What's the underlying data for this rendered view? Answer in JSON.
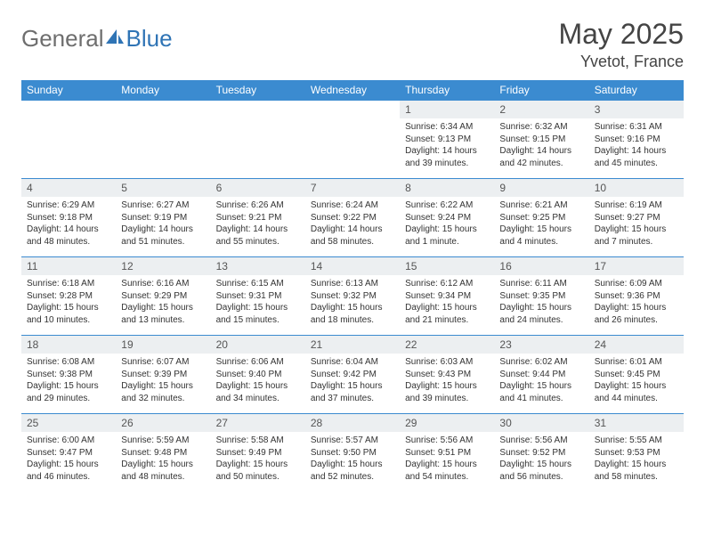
{
  "brand": {
    "part1": "General",
    "part2": "Blue"
  },
  "title": "May 2025",
  "location": "Yvetot, France",
  "colors": {
    "header_bg": "#3b8bd0",
    "header_fg": "#ffffff",
    "daynum_bg": "#eceff1",
    "border": "#3b8bd0",
    "title_color": "#444444",
    "logo_gray": "#6e6e6e",
    "logo_blue": "#2f74b5"
  },
  "weekdays": [
    "Sunday",
    "Monday",
    "Tuesday",
    "Wednesday",
    "Thursday",
    "Friday",
    "Saturday"
  ],
  "weeks": [
    [
      null,
      null,
      null,
      null,
      {
        "n": "1",
        "sr": "6:34 AM",
        "ss": "9:13 PM",
        "dl": "14 hours and 39 minutes."
      },
      {
        "n": "2",
        "sr": "6:32 AM",
        "ss": "9:15 PM",
        "dl": "14 hours and 42 minutes."
      },
      {
        "n": "3",
        "sr": "6:31 AM",
        "ss": "9:16 PM",
        "dl": "14 hours and 45 minutes."
      }
    ],
    [
      {
        "n": "4",
        "sr": "6:29 AM",
        "ss": "9:18 PM",
        "dl": "14 hours and 48 minutes."
      },
      {
        "n": "5",
        "sr": "6:27 AM",
        "ss": "9:19 PM",
        "dl": "14 hours and 51 minutes."
      },
      {
        "n": "6",
        "sr": "6:26 AM",
        "ss": "9:21 PM",
        "dl": "14 hours and 55 minutes."
      },
      {
        "n": "7",
        "sr": "6:24 AM",
        "ss": "9:22 PM",
        "dl": "14 hours and 58 minutes."
      },
      {
        "n": "8",
        "sr": "6:22 AM",
        "ss": "9:24 PM",
        "dl": "15 hours and 1 minute."
      },
      {
        "n": "9",
        "sr": "6:21 AM",
        "ss": "9:25 PM",
        "dl": "15 hours and 4 minutes."
      },
      {
        "n": "10",
        "sr": "6:19 AM",
        "ss": "9:27 PM",
        "dl": "15 hours and 7 minutes."
      }
    ],
    [
      {
        "n": "11",
        "sr": "6:18 AM",
        "ss": "9:28 PM",
        "dl": "15 hours and 10 minutes."
      },
      {
        "n": "12",
        "sr": "6:16 AM",
        "ss": "9:29 PM",
        "dl": "15 hours and 13 minutes."
      },
      {
        "n": "13",
        "sr": "6:15 AM",
        "ss": "9:31 PM",
        "dl": "15 hours and 15 minutes."
      },
      {
        "n": "14",
        "sr": "6:13 AM",
        "ss": "9:32 PM",
        "dl": "15 hours and 18 minutes."
      },
      {
        "n": "15",
        "sr": "6:12 AM",
        "ss": "9:34 PM",
        "dl": "15 hours and 21 minutes."
      },
      {
        "n": "16",
        "sr": "6:11 AM",
        "ss": "9:35 PM",
        "dl": "15 hours and 24 minutes."
      },
      {
        "n": "17",
        "sr": "6:09 AM",
        "ss": "9:36 PM",
        "dl": "15 hours and 26 minutes."
      }
    ],
    [
      {
        "n": "18",
        "sr": "6:08 AM",
        "ss": "9:38 PM",
        "dl": "15 hours and 29 minutes."
      },
      {
        "n": "19",
        "sr": "6:07 AM",
        "ss": "9:39 PM",
        "dl": "15 hours and 32 minutes."
      },
      {
        "n": "20",
        "sr": "6:06 AM",
        "ss": "9:40 PM",
        "dl": "15 hours and 34 minutes."
      },
      {
        "n": "21",
        "sr": "6:04 AM",
        "ss": "9:42 PM",
        "dl": "15 hours and 37 minutes."
      },
      {
        "n": "22",
        "sr": "6:03 AM",
        "ss": "9:43 PM",
        "dl": "15 hours and 39 minutes."
      },
      {
        "n": "23",
        "sr": "6:02 AM",
        "ss": "9:44 PM",
        "dl": "15 hours and 41 minutes."
      },
      {
        "n": "24",
        "sr": "6:01 AM",
        "ss": "9:45 PM",
        "dl": "15 hours and 44 minutes."
      }
    ],
    [
      {
        "n": "25",
        "sr": "6:00 AM",
        "ss": "9:47 PM",
        "dl": "15 hours and 46 minutes."
      },
      {
        "n": "26",
        "sr": "5:59 AM",
        "ss": "9:48 PM",
        "dl": "15 hours and 48 minutes."
      },
      {
        "n": "27",
        "sr": "5:58 AM",
        "ss": "9:49 PM",
        "dl": "15 hours and 50 minutes."
      },
      {
        "n": "28",
        "sr": "5:57 AM",
        "ss": "9:50 PM",
        "dl": "15 hours and 52 minutes."
      },
      {
        "n": "29",
        "sr": "5:56 AM",
        "ss": "9:51 PM",
        "dl": "15 hours and 54 minutes."
      },
      {
        "n": "30",
        "sr": "5:56 AM",
        "ss": "9:52 PM",
        "dl": "15 hours and 56 minutes."
      },
      {
        "n": "31",
        "sr": "5:55 AM",
        "ss": "9:53 PM",
        "dl": "15 hours and 58 minutes."
      }
    ]
  ],
  "labels": {
    "sunrise": "Sunrise:",
    "sunset": "Sunset:",
    "daylight": "Daylight:"
  }
}
